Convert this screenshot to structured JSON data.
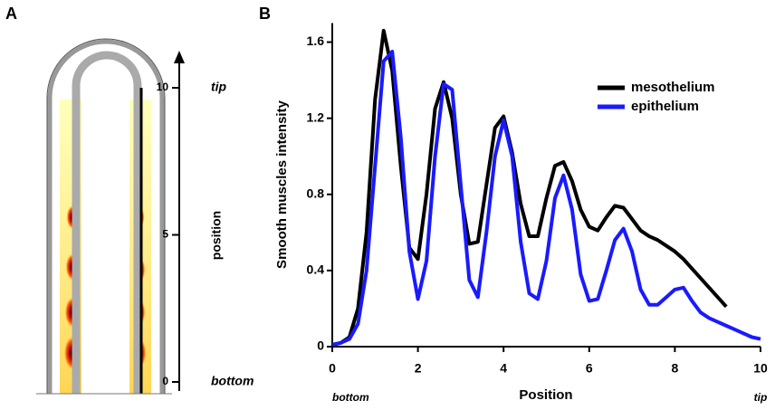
{
  "panel_labels": [
    "A",
    "B"
  ],
  "chart_data": [
    {
      "type": "diagram",
      "ylabel": "position",
      "ylim": [
        0,
        10
      ],
      "yticks": [
        0,
        5,
        10
      ],
      "annotations": [
        {
          "text": "bottom",
          "y": 0
        },
        {
          "text": "tip",
          "y": 10
        }
      ]
    },
    {
      "type": "line",
      "xlabel": "Position",
      "ylabel": "Smooth muscles intensity",
      "xlim": [
        0,
        10
      ],
      "ylim": [
        0,
        1.7
      ],
      "xticks": [
        0,
        2,
        4,
        6,
        8,
        10
      ],
      "yticks": [
        0,
        0.4,
        0.8,
        1.2,
        1.6
      ],
      "legend": "upper right",
      "annotations": [
        {
          "text": "bottom",
          "x": 0
        },
        {
          "text": "tip",
          "x": 10
        }
      ],
      "x": [
        0,
        0.2,
        0.4,
        0.6,
        0.8,
        1,
        1.2,
        1.4,
        1.6,
        1.8,
        2,
        2.2,
        2.4,
        2.6,
        2.8,
        3,
        3.2,
        3.4,
        3.6,
        3.8,
        4,
        4.2,
        4.4,
        4.6,
        4.8,
        5,
        5.2,
        5.4,
        5.6,
        5.8,
        6,
        6.2,
        6.4,
        6.6,
        6.8,
        7,
        7.2,
        7.4,
        7.6,
        7.8,
        8,
        8.2,
        8.4,
        8.6,
        8.8,
        9,
        9.2,
        9.4,
        9.6,
        9.8,
        10
      ],
      "series": [
        {
          "name": "mesothelium",
          "color": "#000000",
          "values": [
            0.01,
            0.02,
            0.05,
            0.2,
            0.6,
            1.3,
            1.66,
            1.45,
            0.95,
            0.52,
            0.46,
            0.8,
            1.25,
            1.39,
            1.2,
            0.8,
            0.54,
            0.55,
            0.85,
            1.15,
            1.21,
            1.02,
            0.75,
            0.58,
            0.58,
            0.78,
            0.95,
            0.97,
            0.87,
            0.72,
            0.63,
            0.61,
            0.68,
            0.74,
            0.73,
            0.67,
            0.61,
            0.58,
            0.56,
            0.53,
            0.5,
            0.46,
            0.41,
            0.36,
            0.31,
            0.26,
            0.21,
            null,
            null,
            null,
            null
          ]
        },
        {
          "name": "epithelium",
          "color": "#1a1aff",
          "values": [
            0.01,
            0.02,
            0.04,
            0.12,
            0.4,
            0.95,
            1.5,
            1.55,
            1.1,
            0.5,
            0.25,
            0.45,
            1.0,
            1.38,
            1.35,
            0.85,
            0.35,
            0.26,
            0.6,
            1.0,
            1.19,
            1.0,
            0.55,
            0.28,
            0.25,
            0.45,
            0.78,
            0.9,
            0.72,
            0.38,
            0.24,
            0.25,
            0.4,
            0.56,
            0.62,
            0.5,
            0.3,
            0.22,
            0.22,
            0.26,
            0.3,
            0.31,
            0.24,
            0.18,
            0.15,
            0.13,
            0.11,
            0.09,
            0.07,
            0.05,
            0.04
          ]
        }
      ]
    }
  ]
}
